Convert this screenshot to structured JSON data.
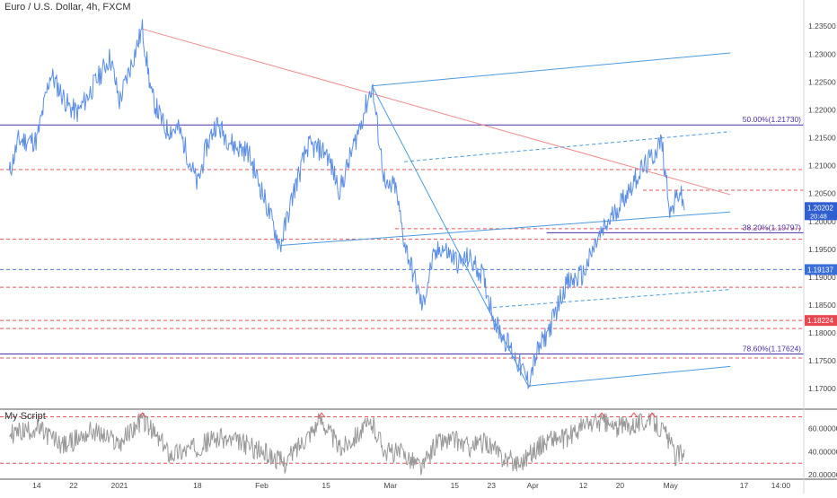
{
  "header": {
    "title": "Euro / U.S. Dollar, 4h, FXCM",
    "indicator_name": "My Script"
  },
  "chart_data": {
    "type": "line",
    "main": {
      "symbol": "Euro / U.S. Dollar",
      "timeframe": "4h",
      "source": "FXCM",
      "ylim": [
        1.1665,
        1.2368
      ],
      "yticks": [
        1.17,
        1.175,
        1.18,
        1.185,
        1.19,
        1.195,
        1.2,
        1.205,
        1.21,
        1.215,
        1.22,
        1.225,
        1.23,
        1.235
      ],
      "yticks_text": [
        "1.17000",
        "1.17500",
        "1.18000",
        "1.18500",
        "1.19000",
        "1.19500",
        "1.20000",
        "1.20500",
        "1.21000",
        "1.21500",
        "1.22000",
        "1.22500",
        "1.23000",
        "1.23500"
      ],
      "price_anchors": [
        [
          "2020-12-08",
          1.2085
        ],
        [
          "2020-12-10",
          1.2145
        ],
        [
          "2020-12-14",
          1.2145
        ],
        [
          "2020-12-17",
          1.2265
        ],
        [
          "2020-12-21",
          1.2205
        ],
        [
          "2020-12-23",
          1.2195
        ],
        [
          "2020-12-30",
          1.2295
        ],
        [
          "2021-01-01",
          1.2215
        ],
        [
          "2021-01-06",
          1.2345
        ],
        [
          "2021-01-08",
          1.2225
        ],
        [
          "2021-01-11",
          1.2165
        ],
        [
          "2021-01-14",
          1.2165
        ],
        [
          "2021-01-18",
          1.2065
        ],
        [
          "2021-01-20",
          1.2135
        ],
        [
          "2021-01-22",
          1.2175
        ],
        [
          "2021-01-26",
          1.2135
        ],
        [
          "2021-01-29",
          1.2125
        ],
        [
          "2021-02-01",
          1.2055
        ],
        [
          "2021-02-05",
          1.1955
        ],
        [
          "2021-02-08",
          1.2055
        ],
        [
          "2021-02-11",
          1.2135
        ],
        [
          "2021-02-15",
          1.2125
        ],
        [
          "2021-02-18",
          1.2055
        ],
        [
          "2021-02-21",
          1.2135
        ],
        [
          "2021-02-25",
          1.2243
        ],
        [
          "2021-02-28",
          1.2055
        ],
        [
          "2021-03-02",
          1.2065
        ],
        [
          "2021-03-04",
          1.1965
        ],
        [
          "2021-03-08",
          1.1845
        ],
        [
          "2021-03-10",
          1.1925
        ],
        [
          "2021-03-12",
          1.1955
        ],
        [
          "2021-03-16",
          1.1925
        ],
        [
          "2021-03-18",
          1.1935
        ],
        [
          "2021-03-21",
          1.1905
        ],
        [
          "2021-03-24",
          1.1815
        ],
        [
          "2021-03-27",
          1.1775
        ],
        [
          "2021-03-31",
          1.1713
        ],
        [
          "2021-04-02",
          1.1765
        ],
        [
          "2021-04-05",
          1.1815
        ],
        [
          "2021-04-08",
          1.1885
        ],
        [
          "2021-04-12",
          1.1905
        ],
        [
          "2021-04-15",
          1.1965
        ],
        [
          "2021-04-18",
          1.2005
        ],
        [
          "2021-04-21",
          1.2045
        ],
        [
          "2021-04-24",
          1.2085
        ],
        [
          "2021-04-27",
          1.2115
        ],
        [
          "2021-04-29",
          1.2145
        ],
        [
          "2021-05-01",
          1.2015
        ],
        [
          "2021-05-03",
          1.2055
        ],
        [
          "2021-05-04",
          1.202
        ]
      ],
      "current_price": "1.20202",
      "current_countdown": "20:48",
      "horizontal_lines": [
        {
          "price": 1.2173,
          "style": "solid",
          "color": "#4a2fa8",
          "label": "50.00%(1.21730)"
        },
        {
          "price": 1.19797,
          "style": "solid",
          "color": "#4a2fa8",
          "label": "38.20%(1.19797)",
          "from": "2021-04-04"
        },
        {
          "price": 1.17624,
          "style": "solid",
          "color": "#4a2fa8",
          "label": "78.60%(1.17624)"
        },
        {
          "price": 1.2093,
          "style": "dashed",
          "color": "#e8535a"
        },
        {
          "price": 1.2056,
          "style": "dashed",
          "color": "#e8535a",
          "from": "2021-04-25"
        },
        {
          "price": 1.1987,
          "style": "dashed",
          "color": "#e8535a",
          "from": "2021-03-02"
        },
        {
          "price": 1.1968,
          "style": "dashed",
          "color": "#e8535a"
        },
        {
          "price": 1.19137,
          "style": "dashed",
          "color": "#4a7bd9"
        },
        {
          "price": 1.1882,
          "style": "dashed",
          "color": "#e8535a"
        },
        {
          "price": 1.18224,
          "style": "dashed",
          "color": "#e8535a"
        },
        {
          "price": 1.1808,
          "style": "dashed",
          "color": "#e8535a"
        },
        {
          "price": 1.1755,
          "style": "dashed",
          "color": "#e8535a"
        }
      ],
      "price_badges": [
        {
          "price": 1.19137,
          "text": "1.19137",
          "color": "#3b6fd8"
        },
        {
          "price": 1.18224,
          "text": "1.18224",
          "color": "#e8474f"
        }
      ],
      "trendlines": [
        {
          "x1": "2021-01-06",
          "y1": 1.2345,
          "x2": "2021-05-14",
          "y2": 1.2048,
          "color": "#f28b8b",
          "style": "solid"
        },
        {
          "x1": "2021-02-25",
          "y1": 1.2243,
          "x2": "2021-05-14",
          "y2": 1.2302,
          "color": "#4a9be0",
          "style": "solid"
        },
        {
          "x1": "2021-02-25",
          "y1": 1.2243,
          "x2": "2021-03-31",
          "y2": 1.1705,
          "color": "#4a9be0",
          "style": "solid"
        },
        {
          "x1": "2021-02-05",
          "y1": 1.1957,
          "x2": "2021-05-14",
          "y2": 1.2017,
          "color": "#4a9be0",
          "style": "solid"
        },
        {
          "x1": "2021-03-31",
          "y1": 1.1705,
          "x2": "2021-05-14",
          "y2": 1.174,
          "color": "#4a9be0",
          "style": "solid"
        },
        {
          "x1": "2021-03-04",
          "y1": 1.2107,
          "x2": "2021-05-14",
          "y2": 1.2161,
          "color": "#4a9be0",
          "style": "dashed"
        },
        {
          "x1": "2021-03-22",
          "y1": 1.1845,
          "x2": "2021-05-14",
          "y2": 1.1878,
          "color": "#4a9be0",
          "style": "dashed"
        }
      ],
      "line_color": "#5b8ee6"
    },
    "indicator": {
      "name": "My Script",
      "ylim": [
        17.0,
        75.0
      ],
      "yticks_text": [
        "60.00000",
        "40.00000",
        "20.00000"
      ],
      "yticks": [
        60,
        40,
        20
      ],
      "levels": [
        70,
        30
      ],
      "level_color": "#e8535a",
      "line_color": "#999999",
      "series_anchors": [
        [
          "2020-12-08",
          55
        ],
        [
          "2020-12-14",
          60
        ],
        [
          "2020-12-20",
          45
        ],
        [
          "2020-12-26",
          58
        ],
        [
          "2021-01-01",
          47
        ],
        [
          "2021-01-06",
          68
        ],
        [
          "2021-01-12",
          38
        ],
        [
          "2021-01-18",
          44
        ],
        [
          "2021-01-22",
          52
        ],
        [
          "2021-01-28",
          47
        ],
        [
          "2021-02-03",
          36
        ],
        [
          "2021-02-06",
          30
        ],
        [
          "2021-02-10",
          50
        ],
        [
          "2021-02-14",
          68
        ],
        [
          "2021-02-18",
          42
        ],
        [
          "2021-02-22",
          56
        ],
        [
          "2021-02-25",
          64
        ],
        [
          "2021-02-28",
          40
        ],
        [
          "2021-03-04",
          38
        ],
        [
          "2021-03-08",
          26
        ],
        [
          "2021-03-11",
          48
        ],
        [
          "2021-03-15",
          50
        ],
        [
          "2021-03-18",
          44
        ],
        [
          "2021-03-22",
          48
        ],
        [
          "2021-03-25",
          36
        ],
        [
          "2021-03-29",
          30
        ],
        [
          "2021-04-01",
          40
        ],
        [
          "2021-04-05",
          52
        ],
        [
          "2021-04-08",
          50
        ],
        [
          "2021-04-12",
          62
        ],
        [
          "2021-04-16",
          66
        ],
        [
          "2021-04-19",
          60
        ],
        [
          "2021-04-23",
          64
        ],
        [
          "2021-04-27",
          68
        ],
        [
          "2021-04-30",
          55
        ],
        [
          "2021-05-02",
          36
        ],
        [
          "2021-05-04",
          42
        ]
      ],
      "overbought_marks": [
        "2021-01-06",
        "2021-02-14",
        "2021-04-16",
        "2021-04-23",
        "2021-04-27"
      ]
    },
    "x_axis": {
      "ticks": [
        {
          "date": "2020-12-14",
          "label": "14"
        },
        {
          "date": "2020-12-22",
          "label": "22"
        },
        {
          "date": "2021-01-01",
          "label": "2021"
        },
        {
          "date": "2021-01-18",
          "label": "18"
        },
        {
          "date": "2021-02-01",
          "label": "Feb"
        },
        {
          "date": "2021-02-15",
          "label": "15"
        },
        {
          "date": "2021-03-01",
          "label": "Mar"
        },
        {
          "date": "2021-03-15",
          "label": "15"
        },
        {
          "date": "2021-03-23",
          "label": "23"
        },
        {
          "date": "2021-04-01",
          "label": "Apr"
        },
        {
          "date": "2021-04-12",
          "label": "12"
        },
        {
          "date": "2021-04-20",
          "label": "20"
        },
        {
          "date": "2021-05-01",
          "label": "May"
        },
        {
          "date": "2021-05-17",
          "label": "17"
        },
        {
          "date": "2021-05-25",
          "label": "14:00"
        }
      ]
    }
  }
}
